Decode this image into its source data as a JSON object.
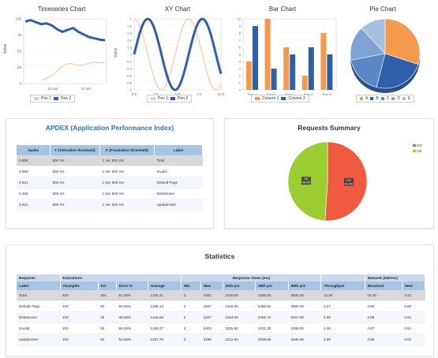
{
  "charts": {
    "timeseries": {
      "title": "Timeseries Chart",
      "ylabel": "Value",
      "legend": [
        "Pen 1",
        "Pen 2"
      ],
      "yticks": [
        "100",
        "75",
        "50",
        "25",
        "0"
      ],
      "xticks": [
        "16 sat",
        "17 sat"
      ]
    },
    "xy": {
      "title": "XY Chart",
      "ylabel": "Value",
      "legend": [
        "Pen 1",
        "Pen 2"
      ],
      "yticks": [
        "1",
        "0.8",
        "0.6",
        "0.4",
        "0.2",
        "0",
        "-0.2",
        "-0.4",
        "-0.6",
        "-0.8",
        "-1"
      ],
      "xticks": [
        "0.0",
        "2.5",
        "5.0",
        "7.5",
        "10.0"
      ]
    },
    "bar": {
      "title": "Bar Chart",
      "legend": [
        "Column 1",
        "Column 2"
      ],
      "yticks": [
        "10",
        "9",
        "8",
        "7",
        "6",
        "5",
        "4",
        "3",
        "2",
        "1",
        "0"
      ],
      "xticks": [
        "Row 1",
        "Row 2",
        "Row 3",
        "Row 4",
        "Row 5"
      ]
    },
    "pie": {
      "title": "Pie Chart",
      "legend": [
        "A",
        "B",
        "C",
        "D",
        "E"
      ]
    }
  },
  "chart_data": [
    {
      "type": "line",
      "title": "Timeseries Chart",
      "ylabel": "Value",
      "ylim": [
        0,
        100
      ],
      "series": [
        {
          "name": "Pen 1",
          "color": "#f6c9a5",
          "values": [
            5,
            8,
            12,
            18,
            26,
            30,
            31,
            29,
            28,
            30,
            32,
            33,
            32,
            33
          ]
        },
        {
          "name": "Pen 2",
          "color": "#2e5fa8",
          "values": [
            96,
            98,
            95,
            92,
            93,
            90,
            84,
            80,
            83,
            86,
            80,
            76,
            72,
            70,
            68,
            67
          ]
        }
      ]
    },
    {
      "type": "line",
      "title": "XY Chart",
      "ylabel": "Value",
      "ylim": [
        -1,
        1
      ],
      "xlim": [
        0,
        10
      ],
      "series": [
        {
          "name": "Pen 1",
          "color": "#f6c9a5",
          "function": "cos"
        },
        {
          "name": "Pen 2",
          "color": "#2e5fa8",
          "function": "sin"
        }
      ]
    },
    {
      "type": "bar",
      "title": "Bar Chart",
      "categories": [
        "Row 1",
        "Row 2",
        "Row 3",
        "Row 4",
        "Row 5"
      ],
      "ylim": [
        0,
        10
      ],
      "series": [
        {
          "name": "Column 1",
          "color": "#f39a4c",
          "values": [
            4,
            10,
            6,
            2,
            8
          ]
        },
        {
          "name": "Column 2",
          "color": "#2e5fa8",
          "values": [
            9,
            3,
            5,
            6,
            5
          ]
        }
      ]
    },
    {
      "type": "pie",
      "title": "Pie Chart",
      "categories": [
        "A",
        "B",
        "C",
        "D",
        "E"
      ],
      "values": [
        30,
        24,
        18,
        16,
        12
      ],
      "colors": [
        "#f39a4c",
        "#2e5fa8",
        "#5b87c7",
        "#7ea3d4",
        "#a7c0e2"
      ]
    },
    {
      "type": "pie",
      "title": "Requests Summary",
      "categories": [
        "KO",
        "OK"
      ],
      "values": [
        51,
        49
      ],
      "colors": [
        "#f05a40",
        "#9acd32"
      ]
    }
  ],
  "apdex": {
    "title": "APDEX (Application Performance Index)",
    "headers": [
      "Apdex",
      "T (Toleration threshold)",
      "F (Frustration threshold)",
      "Label"
    ],
    "rows": [
      [
        "0.888",
        "500 ms",
        "1 sec 500 ms",
        "Total"
      ],
      [
        "0.960",
        "500 ms",
        "1 sec 500 ms",
        "Invalid"
      ],
      [
        "0.921",
        "500 ms",
        "1 sec 500 ms",
        "Default Page"
      ],
      [
        "0.458",
        "500 ms",
        "1 sec 500 ms",
        "DeleteUser"
      ],
      [
        "0.821",
        "500 ms",
        "1 sec 500 ms",
        "UpdateUser"
      ]
    ]
  },
  "requests": {
    "title": "Requests Summary",
    "legend": [
      "KO",
      "OK"
    ],
    "labels": [
      "KO\n51.0%",
      "OK\n49.0%"
    ]
  },
  "stats": {
    "title": "Statistics",
    "groups": [
      "Requests",
      "Executions",
      "Response Times (ms)",
      "Network (KB/sec)"
    ],
    "headers": [
      "Label",
      "#Samples",
      "KO",
      "Error %",
      "Average",
      "Min",
      "Max",
      "90th pct",
      "95th pct",
      "99th pct",
      "Throughput",
      "Received",
      "Sent"
    ],
    "rows": [
      [
        "Total",
        "400",
        "204",
        "51.00%",
        "1245.41",
        "2",
        "3402",
        "2155.00",
        "2465.00",
        "3008.00",
        "12.84",
        "19.46",
        "2.43"
      ],
      [
        "Default Page",
        "100",
        "50",
        "50.00%",
        "1208.13",
        "3",
        "2947",
        "2155.00",
        "2465.50",
        "2980.00",
        "3.27",
        "4.90",
        "0.60"
      ],
      [
        "DeleteUser",
        "100",
        "45",
        "45.00%",
        "1246.68",
        "2",
        "3267",
        "2184.60",
        "2465.70",
        "3267.00",
        "3.30",
        "4.98",
        "0.62"
      ],
      [
        "Invalid",
        "100",
        "55",
        "55.00%",
        "1269.07",
        "3",
        "3402",
        "2205.60",
        "2431.30",
        "3399.00",
        "3.30",
        "4.97",
        "0.61"
      ],
      [
        "UpdateUser",
        "100",
        "54",
        "54.00%",
        "1257.76",
        "3",
        "3286",
        "2212.80",
        "2508.85",
        "3286.00",
        "3.30",
        "4.98",
        "0.62"
      ]
    ]
  }
}
